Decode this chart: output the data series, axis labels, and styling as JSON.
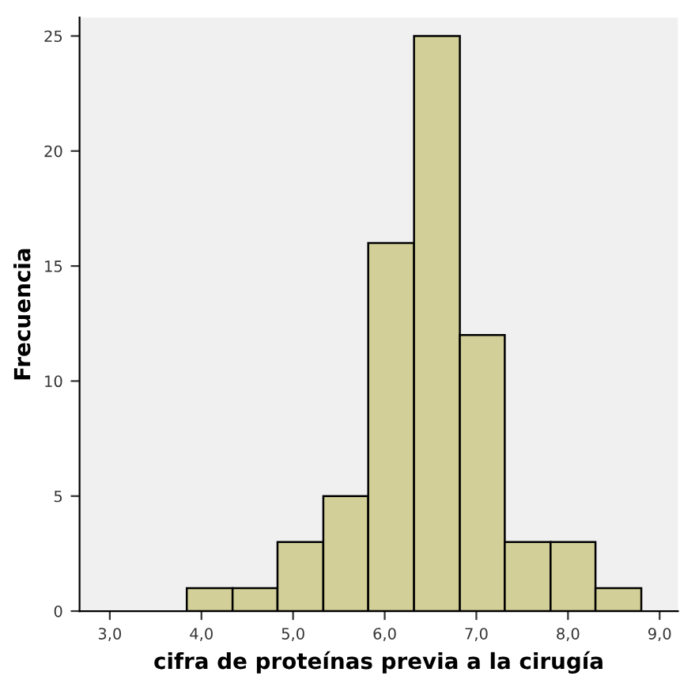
{
  "chart_data": {
    "type": "histogram",
    "xlabel": "cifra de proteínas previa a la cirugía",
    "ylabel": "Frecuencia",
    "bins": [
      3.84,
      4.34,
      4.83,
      5.33,
      5.82,
      6.32,
      6.82,
      7.31,
      7.81,
      8.3,
      8.8
    ],
    "values": [
      1,
      1,
      3,
      5,
      16,
      25,
      12,
      3,
      3,
      1
    ],
    "color": "#d3cf98",
    "xlim": [
      2.67,
      9.2
    ],
    "ylim": [
      0,
      25.8
    ],
    "xticks": [
      {
        "value": 3,
        "label": "3,0"
      },
      {
        "value": 4,
        "label": "4,0"
      },
      {
        "value": 5,
        "label": "5,0"
      },
      {
        "value": 6,
        "label": "6,0"
      },
      {
        "value": 7,
        "label": "7,0"
      },
      {
        "value": 8,
        "label": "8,0"
      },
      {
        "value": 9,
        "label": "9,0"
      }
    ],
    "yticks": [
      0,
      5,
      10,
      15,
      20,
      25
    ],
    "grid": false,
    "legend": false
  }
}
